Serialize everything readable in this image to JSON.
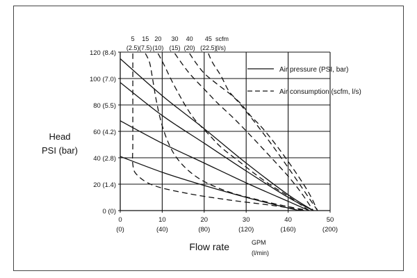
{
  "chart_data": {
    "type": "line",
    "title": "",
    "ylabel": "Head",
    "ylabel_unit": "PSI (bar)",
    "xlabel": "Flow rate",
    "xlabel_unit_top": "GPM",
    "xlabel_unit_bottom": "(l/min)",
    "xlim": [
      0,
      50
    ],
    "ylim": [
      0,
      120
    ],
    "grid": true,
    "x_ticks": [
      {
        "value": 0,
        "gpm": "0",
        "lpm": "(0)"
      },
      {
        "value": 10,
        "gpm": "10",
        "lpm": "(40)"
      },
      {
        "value": 20,
        "gpm": "20",
        "lpm": "(80)"
      },
      {
        "value": 30,
        "gpm": "30",
        "lpm": "(120)"
      },
      {
        "value": 40,
        "gpm": "40",
        "lpm": "(160)"
      },
      {
        "value": 50,
        "gpm": "50",
        "lpm": "(200)"
      }
    ],
    "y_ticks": [
      {
        "value": 0,
        "label": "0 (0)"
      },
      {
        "value": 20,
        "label": "20 (1.4)"
      },
      {
        "value": 40,
        "label": "40 (2.8)"
      },
      {
        "value": 60,
        "label": "60 (4.2)"
      },
      {
        "value": 80,
        "label": "80 (5.5)"
      },
      {
        "value": 100,
        "label": "100 (7.0)"
      },
      {
        "value": 120,
        "label": "120 (8.4)"
      }
    ],
    "air_consumption_scale": {
      "unit_scfm": "scfm",
      "unit_ls": "(l/s)",
      "ticks": [
        {
          "x": 3,
          "scfm": "5",
          "ls": "(2.5)"
        },
        {
          "x": 6,
          "scfm": "15",
          "ls": "(7.5)"
        },
        {
          "x": 9,
          "scfm": "20",
          "ls": "(10)"
        },
        {
          "x": 13,
          "scfm": "30",
          "ls": "(15)"
        },
        {
          "x": 16.5,
          "scfm": "40",
          "ls": "(20)"
        },
        {
          "x": 21,
          "scfm": "45",
          "ls": "(22.5)"
        }
      ]
    },
    "legend": {
      "placement": "top-right",
      "entries": [
        {
          "label": "Air pressure (PSI, bar)",
          "style": "solid"
        },
        {
          "label": "Air consumption (scfm, l/s)",
          "style": "dashed"
        }
      ]
    },
    "series": [
      {
        "kind": "air_pressure",
        "style": "solid",
        "points": [
          [
            0,
            115
          ],
          [
            10,
            87
          ],
          [
            20,
            62
          ],
          [
            30,
            36
          ],
          [
            40,
            12
          ],
          [
            46,
            0
          ]
        ]
      },
      {
        "kind": "air_pressure",
        "style": "solid",
        "points": [
          [
            0,
            97
          ],
          [
            10,
            72
          ],
          [
            20,
            51
          ],
          [
            30,
            30
          ],
          [
            40,
            10
          ],
          [
            46,
            0
          ]
        ]
      },
      {
        "kind": "air_pressure",
        "style": "solid",
        "points": [
          [
            0,
            68
          ],
          [
            10,
            51
          ],
          [
            20,
            36
          ],
          [
            30,
            21
          ],
          [
            40,
            7
          ],
          [
            45,
            0
          ]
        ]
      },
      {
        "kind": "air_pressure",
        "style": "solid",
        "points": [
          [
            0,
            41
          ],
          [
            10,
            29
          ],
          [
            20,
            19
          ],
          [
            30,
            10
          ],
          [
            40,
            2
          ],
          [
            43,
            0
          ]
        ]
      },
      {
        "kind": "air_consumption",
        "style": "dashed",
        "points": [
          [
            3,
            119
          ],
          [
            3,
            110
          ],
          [
            3,
            90
          ],
          [
            3,
            70
          ],
          [
            3,
            50
          ],
          [
            3,
            35
          ],
          [
            4,
            27
          ],
          [
            8,
            19
          ],
          [
            16,
            13
          ],
          [
            26,
            8
          ],
          [
            36,
            4
          ],
          [
            44,
            0
          ]
        ]
      },
      {
        "kind": "air_consumption",
        "style": "dashed",
        "points": [
          [
            6,
            119
          ],
          [
            7,
            112
          ],
          [
            7.7,
            100
          ],
          [
            8.5,
            85
          ],
          [
            9.5,
            70
          ],
          [
            11,
            55
          ],
          [
            13,
            42
          ],
          [
            16,
            31
          ],
          [
            20,
            22
          ],
          [
            26,
            14
          ],
          [
            33,
            8
          ],
          [
            40,
            3
          ],
          [
            45,
            0
          ]
        ]
      },
      {
        "kind": "air_consumption",
        "style": "dashed",
        "points": [
          [
            9,
            119
          ],
          [
            10.5,
            110
          ],
          [
            12,
            100
          ],
          [
            14,
            88
          ],
          [
            16,
            77
          ],
          [
            18,
            68
          ],
          [
            21,
            58
          ],
          [
            24,
            48
          ],
          [
            28,
            38
          ],
          [
            32,
            28
          ],
          [
            36,
            19
          ],
          [
            40,
            11
          ],
          [
            45,
            0
          ]
        ]
      },
      {
        "kind": "air_consumption",
        "style": "dashed",
        "points": [
          [
            13,
            119
          ],
          [
            15,
            110
          ],
          [
            17,
            102
          ],
          [
            20,
            92
          ],
          [
            23,
            82
          ],
          [
            27,
            70
          ],
          [
            31,
            57
          ],
          [
            36,
            40
          ],
          [
            40,
            26
          ],
          [
            43,
            14
          ],
          [
            46,
            0
          ]
        ]
      },
      {
        "kind": "air_consumption",
        "style": "dashed",
        "points": [
          [
            16.5,
            119
          ],
          [
            18,
            112
          ],
          [
            20,
            104
          ],
          [
            23,
            96
          ],
          [
            27,
            86
          ],
          [
            30,
            75
          ],
          [
            33,
            63
          ],
          [
            37,
            46
          ],
          [
            41,
            28
          ],
          [
            44,
            14
          ],
          [
            47,
            0
          ]
        ]
      },
      {
        "kind": "air_consumption",
        "style": "dashed",
        "points": [
          [
            21,
            119
          ],
          [
            22,
            112
          ],
          [
            24,
            102
          ],
          [
            26,
            90
          ],
          [
            29,
            80
          ],
          [
            31,
            72
          ],
          [
            34,
            62
          ],
          [
            38,
            46
          ],
          [
            42,
            28
          ],
          [
            45,
            13
          ],
          [
            47,
            0
          ]
        ]
      }
    ]
  }
}
